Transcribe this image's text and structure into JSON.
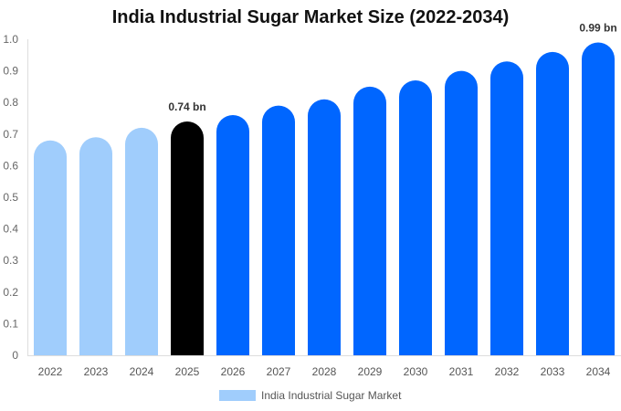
{
  "chart_data": {
    "type": "bar",
    "title": "India Industrial Sugar Market Size (2022-2034)",
    "categories": [
      "2022",
      "2023",
      "2024",
      "2025",
      "2026",
      "2027",
      "2028",
      "2029",
      "2030",
      "2031",
      "2032",
      "2033",
      "2034"
    ],
    "series": [
      {
        "name": "India Industrial Sugar Market",
        "values": [
          0.68,
          0.69,
          0.72,
          0.74,
          0.76,
          0.79,
          0.81,
          0.85,
          0.87,
          0.9,
          0.93,
          0.96,
          0.99
        ]
      }
    ],
    "data_labels": {
      "3": "0.74 bn",
      "12": "0.99 bn"
    },
    "ylim": [
      0,
      1.0
    ],
    "yticks": [
      "0",
      "0.1",
      "0.2",
      "0.3",
      "0.4",
      "0.5",
      "0.6",
      "0.7",
      "0.8",
      "0.9",
      "1.0"
    ],
    "xlabel": "",
    "ylabel": "",
    "grid": false,
    "legend": "bottom",
    "colors": {
      "historical": "#a0cdfc",
      "current": "#000000",
      "forecast": "#0066ff"
    }
  }
}
